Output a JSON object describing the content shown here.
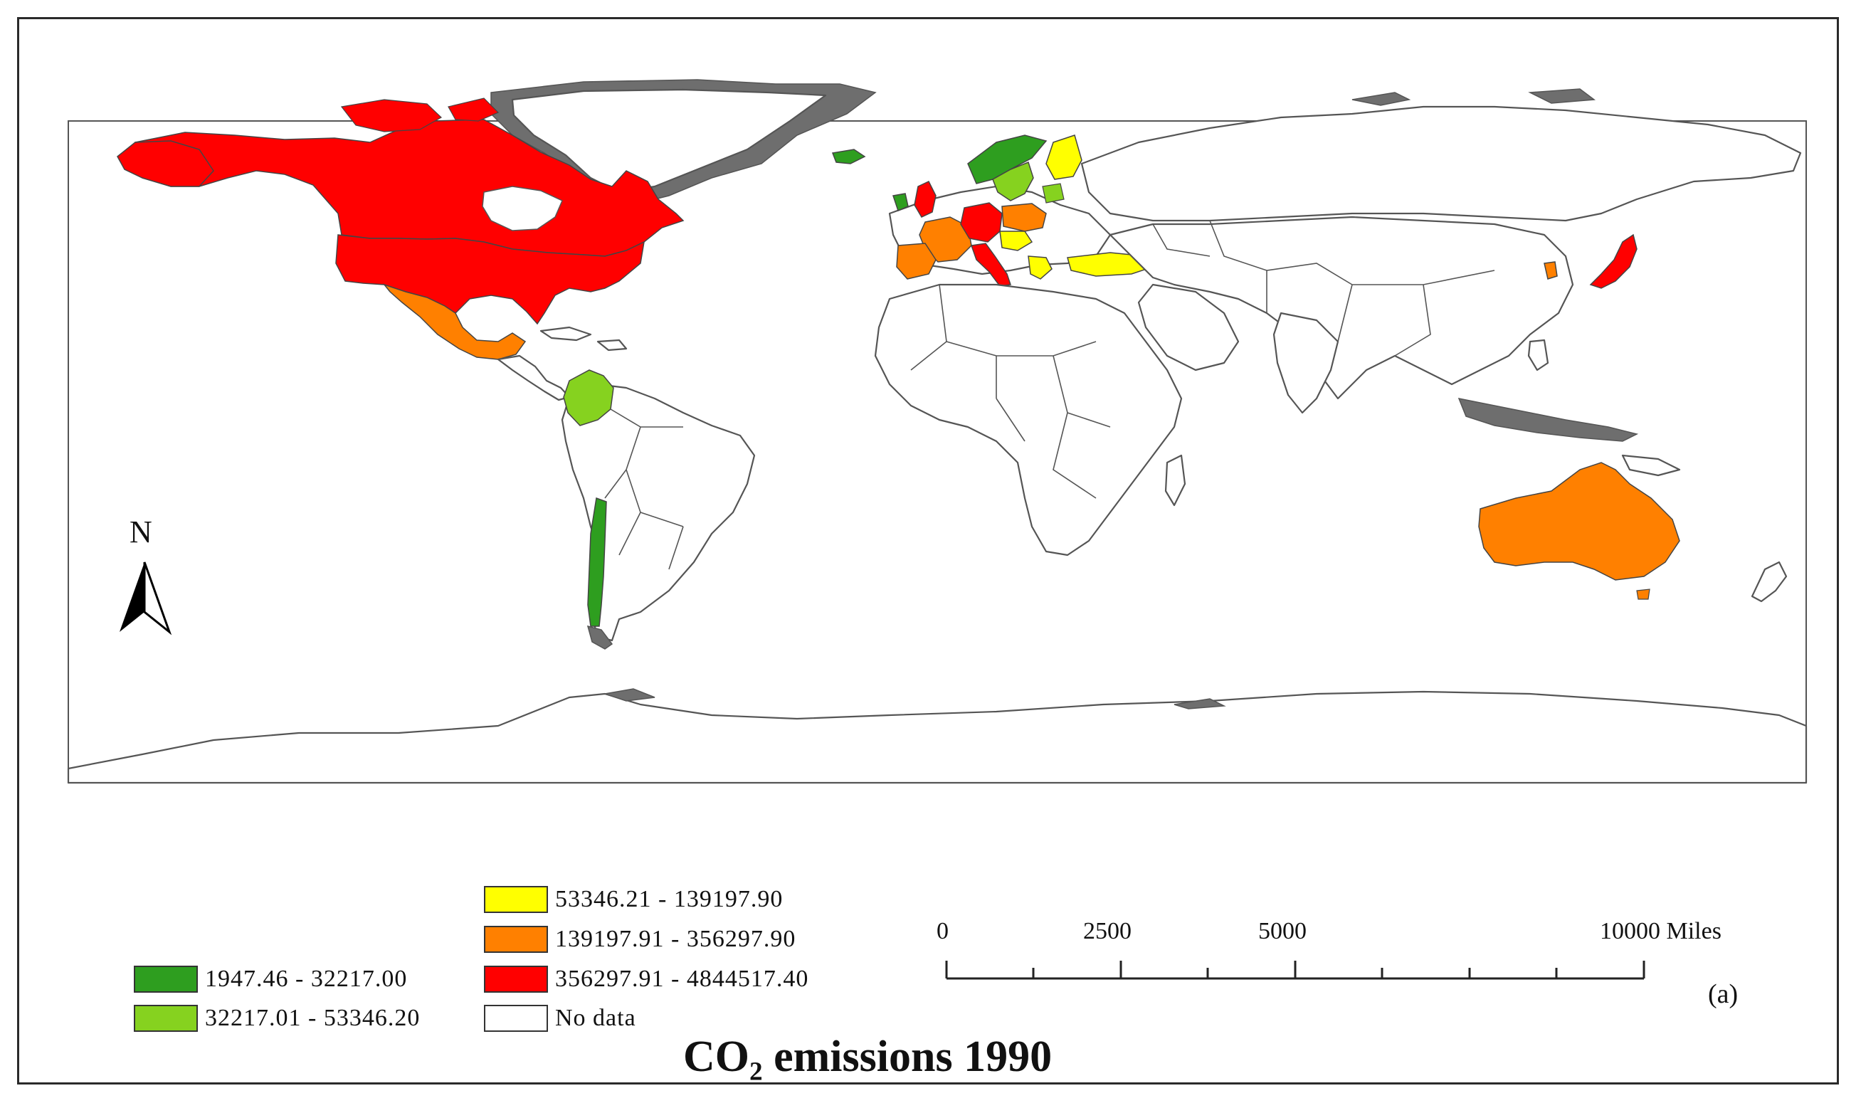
{
  "title": "CO₂ emissions 1990",
  "panel_label": "(a)",
  "north_label": "N",
  "colors": {
    "class1": "#2e9e1f",
    "class2": "#86d21f",
    "class3": "#ffff00",
    "class4": "#ff8000",
    "class5": "#ff0000",
    "no_data": "#ffffff"
  },
  "legend": [
    {
      "label": "1947.46 - 32217.00",
      "color": "#2e9e1f"
    },
    {
      "label": "32217.01 - 53346.20",
      "color": "#86d21f"
    },
    {
      "label": "53346.21 - 139197.90",
      "color": "#ffff00"
    },
    {
      "label": "139197.91 - 356297.90",
      "color": "#ff8000"
    },
    {
      "label": "356297.91 - 4844517.40",
      "color": "#ff0000"
    },
    {
      "label": "No data",
      "color": "#ffffff"
    }
  ],
  "scale_bar": {
    "labels": [
      "0",
      "2500",
      "5000",
      "10000 Miles"
    ]
  }
}
